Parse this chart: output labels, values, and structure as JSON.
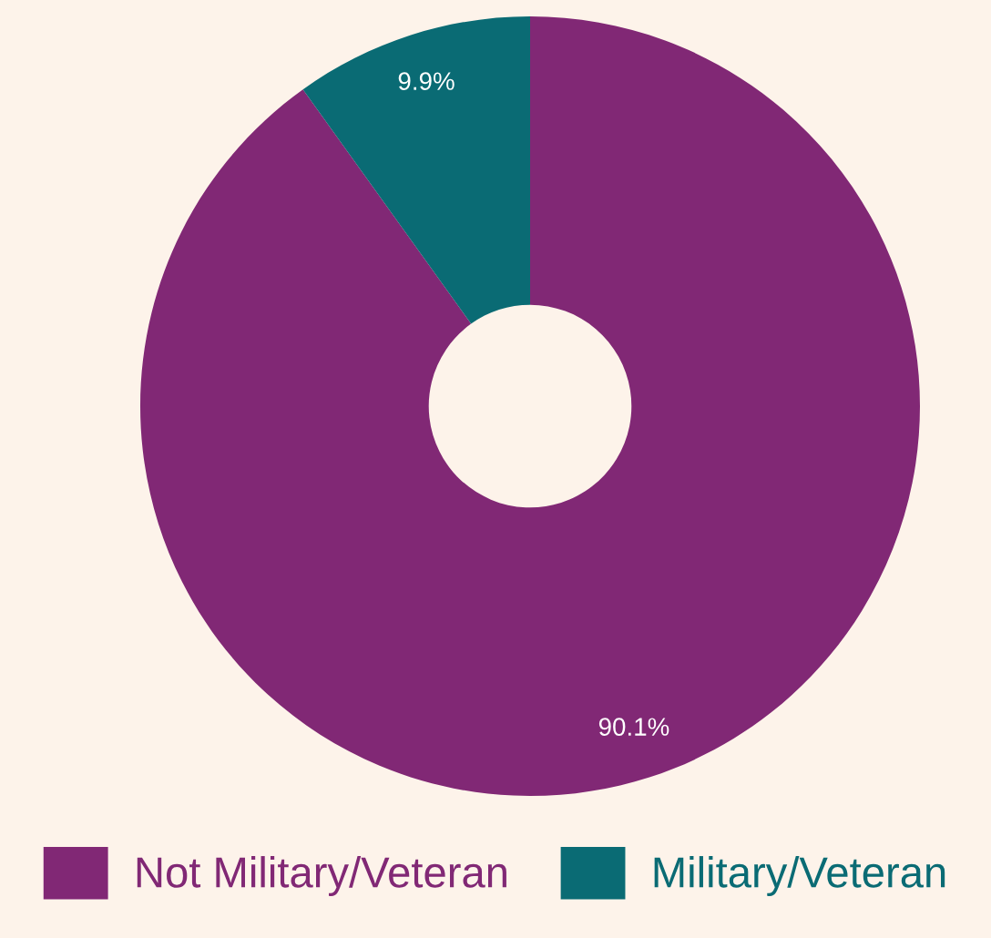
{
  "chart_data": {
    "type": "donut",
    "categories": [
      "Not Military/Veteran",
      "Military/Veteran"
    ],
    "values": [
      90.1,
      9.9
    ],
    "colors": [
      "#812875",
      "#0a6b74"
    ],
    "value_labels": [
      "90.1%",
      "9.9%"
    ],
    "legend": "bottom"
  }
}
